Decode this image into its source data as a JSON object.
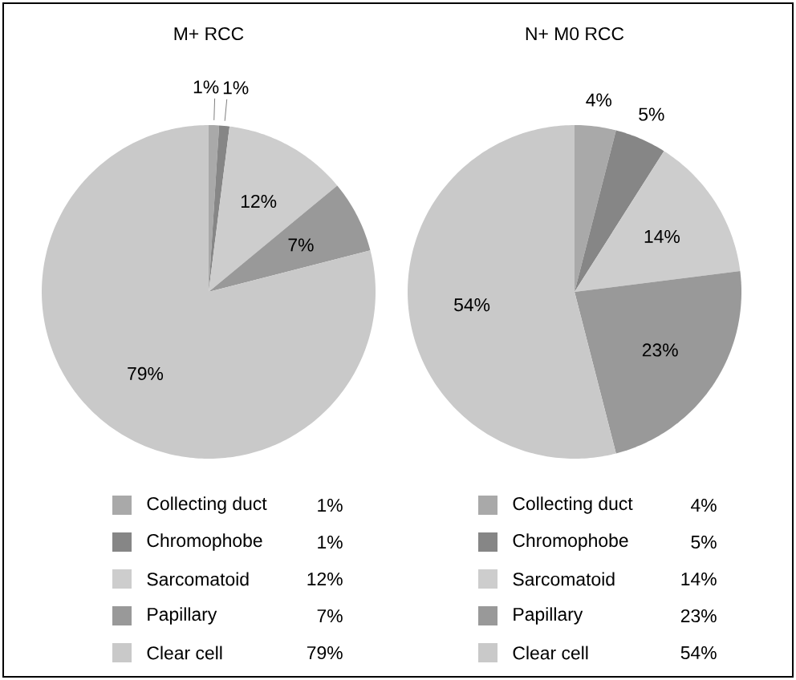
{
  "chart_data": [
    {
      "type": "pie",
      "title": "M+ RCC",
      "categories": [
        "Collecting duct",
        "Chromophobe",
        "Sarcomatoid",
        "Papillary",
        "Clear cell"
      ],
      "values": [
        1,
        1,
        12,
        7,
        79
      ],
      "value_labels": [
        "1%",
        "1%",
        "12%",
        "7%",
        "79%"
      ],
      "colors": [
        "#a9a9a9",
        "#868686",
        "#cdcdcd",
        "#999999",
        "#c9c9c9"
      ],
      "legend": "bottom"
    },
    {
      "type": "pie",
      "title": "N+ M0 RCC",
      "categories": [
        "Collecting duct",
        "Chromophobe",
        "Sarcomatoid",
        "Papillary",
        "Clear cell"
      ],
      "values": [
        4,
        5,
        14,
        23,
        54
      ],
      "value_labels": [
        "4%",
        "5%",
        "14%",
        "23%",
        "54%"
      ],
      "colors": [
        "#a9a9a9",
        "#868686",
        "#cdcdcd",
        "#999999",
        "#c9c9c9"
      ],
      "legend": "bottom"
    }
  ]
}
